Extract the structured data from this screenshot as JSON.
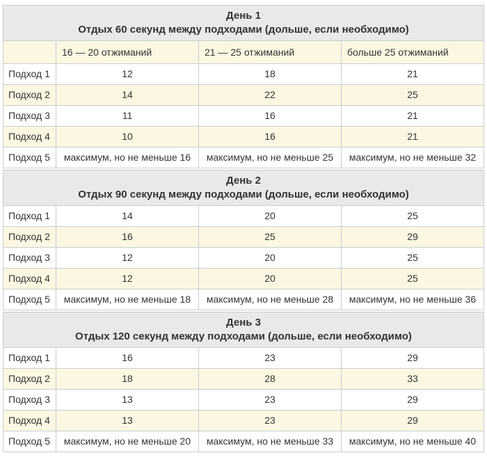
{
  "colors": {
    "title_band_bg": "#e9e9e9",
    "stripe_bg": "#fbf7e2",
    "border": "#cccccc",
    "text": "#333333",
    "page_bg": "#ffffff"
  },
  "columns": {
    "empty": "",
    "col1": "16 — 20 отжиманий",
    "col2": "21 — 25 отжиманий",
    "col3": "больше 25 отжиманий"
  },
  "days": [
    {
      "title": "День 1",
      "subtitle": "Отдых 60 секунд между подходами (дольше, если необходимо)",
      "rows": [
        {
          "label": "Подход 1",
          "values": [
            "12",
            "18",
            "21"
          ]
        },
        {
          "label": "Подход 2",
          "values": [
            "14",
            "22",
            "25"
          ]
        },
        {
          "label": "Подход 3",
          "values": [
            "11",
            "16",
            "21"
          ]
        },
        {
          "label": "Подход 4",
          "values": [
            "10",
            "16",
            "21"
          ]
        },
        {
          "label": "Подход 5",
          "values": [
            "максимум, но не меньше 16",
            "максимум, но не меньше 25",
            "максимум, но не меньше 32"
          ]
        }
      ]
    },
    {
      "title": "День 2",
      "subtitle": "Отдых 90 секунд между подходами (дольше, если необходимо)",
      "rows": [
        {
          "label": "Подход 1",
          "values": [
            "14",
            "20",
            "25"
          ]
        },
        {
          "label": "Подход 2",
          "values": [
            "16",
            "25",
            "29"
          ]
        },
        {
          "label": "Подход 3",
          "values": [
            "12",
            "20",
            "25"
          ]
        },
        {
          "label": "Подход 4",
          "values": [
            "12",
            "20",
            "25"
          ]
        },
        {
          "label": "Подход 5",
          "values": [
            "максимум, но не меньше 18",
            "максимум, но не меньше 28",
            "максимум, но не меньше 36"
          ]
        }
      ]
    },
    {
      "title": "День 3",
      "subtitle": "Отдых 120 секунд между подходами (дольше, если необходимо)",
      "rows": [
        {
          "label": "Подход 1",
          "values": [
            "16",
            "23",
            "29"
          ]
        },
        {
          "label": "Подход 2",
          "values": [
            "18",
            "28",
            "33"
          ]
        },
        {
          "label": "Подход 3",
          "values": [
            "13",
            "23",
            "29"
          ]
        },
        {
          "label": "Подход 4",
          "values": [
            "13",
            "23",
            "29"
          ]
        },
        {
          "label": "Подход 5",
          "values": [
            "максимум, но не меньше 20",
            "максимум, но не меньше 33",
            "максимум, но не меньше 40"
          ]
        }
      ]
    }
  ]
}
